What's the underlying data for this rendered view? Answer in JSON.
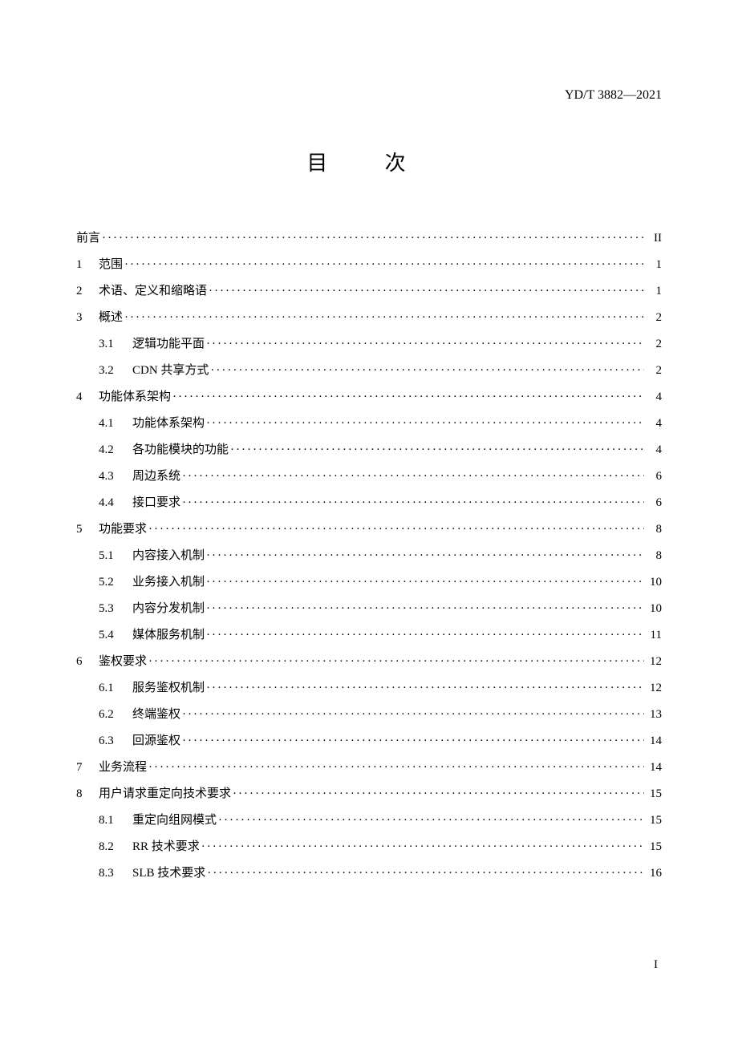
{
  "doc_id": "YD/T 3882—2021",
  "title": "目  次",
  "page_number": "I",
  "toc": [
    {
      "level": 0,
      "num": "",
      "label": "前言",
      "page": "II"
    },
    {
      "level": 0,
      "num": "1",
      "label": "范围",
      "page": "1"
    },
    {
      "level": 0,
      "num": "2",
      "label": "术语、定义和缩略语",
      "page": "1"
    },
    {
      "level": 0,
      "num": "3",
      "label": "概述",
      "page": "2"
    },
    {
      "level": 1,
      "num": "3.1",
      "label": "逻辑功能平面",
      "page": "2"
    },
    {
      "level": 1,
      "num": "3.2",
      "label": "CDN 共享方式",
      "page": "2"
    },
    {
      "level": 0,
      "num": "4",
      "label": "功能体系架构",
      "page": "4"
    },
    {
      "level": 1,
      "num": "4.1",
      "label": "功能体系架构",
      "page": "4"
    },
    {
      "level": 1,
      "num": "4.2",
      "label": "各功能模块的功能",
      "page": "4"
    },
    {
      "level": 1,
      "num": "4.3",
      "label": "周边系统",
      "page": "6"
    },
    {
      "level": 1,
      "num": "4.4",
      "label": "接口要求",
      "page": "6"
    },
    {
      "level": 0,
      "num": "5",
      "label": "功能要求",
      "page": "8"
    },
    {
      "level": 1,
      "num": "5.1",
      "label": "内容接入机制",
      "page": "8"
    },
    {
      "level": 1,
      "num": "5.2",
      "label": "业务接入机制",
      "page": "10"
    },
    {
      "level": 1,
      "num": "5.3",
      "label": "内容分发机制",
      "page": "10"
    },
    {
      "level": 1,
      "num": "5.4",
      "label": "媒体服务机制",
      "page": "11"
    },
    {
      "level": 0,
      "num": "6",
      "label": "鉴权要求",
      "page": "12"
    },
    {
      "level": 1,
      "num": "6.1",
      "label": "服务鉴权机制",
      "page": "12"
    },
    {
      "level": 1,
      "num": "6.2",
      "label": "终端鉴权",
      "page": "13"
    },
    {
      "level": 1,
      "num": "6.3",
      "label": "回源鉴权",
      "page": "14"
    },
    {
      "level": 0,
      "num": "7",
      "label": "业务流程",
      "page": "14"
    },
    {
      "level": 0,
      "num": "8",
      "label": "用户请求重定向技术要求",
      "page": "15"
    },
    {
      "level": 1,
      "num": "8.1",
      "label": "重定向组网模式",
      "page": "15"
    },
    {
      "level": 1,
      "num": "8.2",
      "label": "RR 技术要求",
      "page": "15"
    },
    {
      "level": 1,
      "num": "8.3",
      "label": "SLB 技术要求",
      "page": "16"
    }
  ]
}
